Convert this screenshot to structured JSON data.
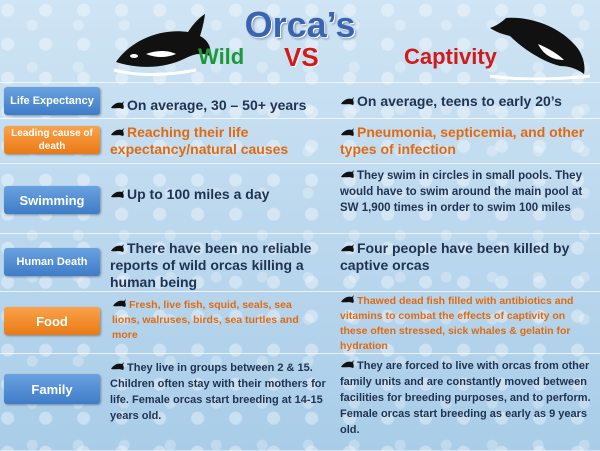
{
  "header": {
    "title": "Orca’s",
    "left_label": "Wild",
    "vs_label": "VS",
    "right_label": "Captivity"
  },
  "rows": [
    {
      "label": "Life Expectancy",
      "wild": "On average, 30 – 50+ years",
      "captivity": "On average, teens to early 20’s"
    },
    {
      "label": "Leading cause of death",
      "wild": "Reaching their life expectancy/natural causes",
      "captivity": "Pneumonia, septicemia, and other types of infection"
    },
    {
      "label": "Swimming",
      "wild": "Up to 100 miles a day",
      "captivity": "They swim in circles in small pools.  They would have to swim around the main pool at SW 1,900 times in order to swim 100 miles"
    },
    {
      "label": "Human Death",
      "wild": "There have been no reliable reports of wild orcas killing a human being",
      "captivity": "Four people have been killed by captive orcas"
    },
    {
      "label": "Food",
      "wild": "Fresh, live fish, squid, seals, sea lions, walruses, birds, sea turtles and more",
      "captivity": "Thawed dead fish filled with antibiotics and vitamins to combat the effects of captivity on these often stressed, sick whales & gelatin for hydration"
    },
    {
      "label": "Family",
      "wild": "They live in groups between 2 & 15.  Children often stay with their mothers for life. Female orcas start breeding at 14-15 years old.",
      "captivity": "They are forced to live with orcas from other family units and are constantly moved between facilities for breeding purposes, and to perform.  Female orcas start breeding as early as 9 years old."
    }
  ],
  "colors": {
    "title": "#3a64b0",
    "wild": "#1c9a3a",
    "captivity": "#d11a1a",
    "blue_label": "#4a86d0",
    "orange_label": "#f08a24",
    "orange_text": "#e06a10",
    "body_text": "#1f3350"
  },
  "icons": [
    "orca-icon",
    "orca-bullet-icon"
  ]
}
